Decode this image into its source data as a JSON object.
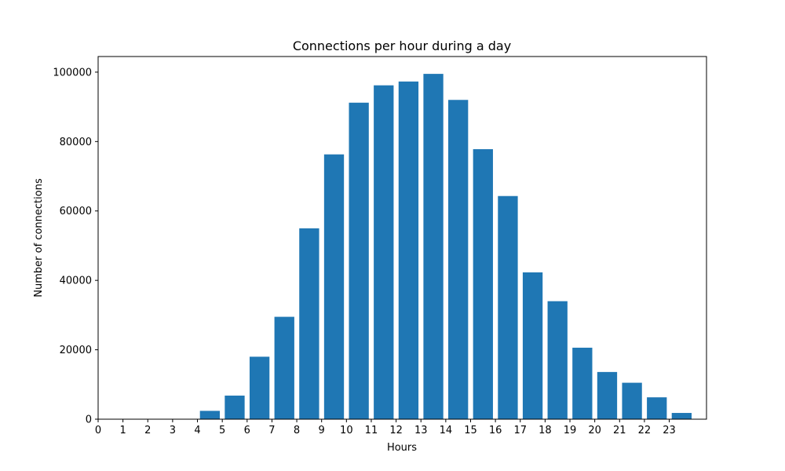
{
  "chart_data": {
    "type": "bar",
    "title": "Connections per hour during a day",
    "xlabel": "Hours",
    "ylabel": "Number of connections",
    "categories": [
      "0",
      "1",
      "2",
      "3",
      "4",
      "5",
      "6",
      "7",
      "8",
      "9",
      "10",
      "11",
      "12",
      "13",
      "14",
      "15",
      "16",
      "17",
      "18",
      "19",
      "20",
      "21",
      "22",
      "23"
    ],
    "values": [
      0,
      0,
      0,
      0,
      2400,
      6800,
      18000,
      29500,
      55000,
      76300,
      91200,
      96200,
      97300,
      99500,
      92000,
      77800,
      64300,
      42300,
      34000,
      20600,
      13600,
      10500,
      6300,
      1800
    ],
    "xlim": [
      0,
      24.5
    ],
    "ylim": [
      0,
      104500
    ],
    "yticks": [
      0,
      20000,
      40000,
      60000,
      80000,
      100000
    ],
    "ytick_labels": [
      "0",
      "20000",
      "40000",
      "60000",
      "80000",
      "100000"
    ],
    "xticks": [
      0,
      1,
      2,
      3,
      4,
      5,
      6,
      7,
      8,
      9,
      10,
      11,
      12,
      13,
      14,
      15,
      16,
      17,
      18,
      19,
      20,
      21,
      22,
      23
    ],
    "bar_width": 0.8,
    "bar_color": "#1f77b4",
    "grid": false,
    "legend": "none"
  }
}
